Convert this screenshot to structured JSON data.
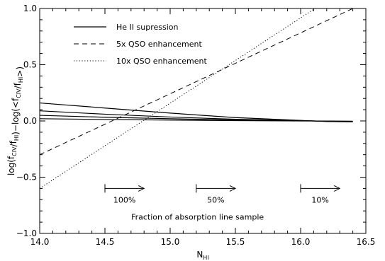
{
  "chart_data": {
    "type": "line",
    "title": "",
    "xlabel": "N_HI",
    "ylabel": "log(f_CIV/f_HI)−log(<f_CIV/f_HI>)",
    "xlim": [
      14.0,
      16.5
    ],
    "ylim": [
      -1.0,
      1.0
    ],
    "xticks": [
      "14.0",
      "14.5",
      "15.0",
      "15.5",
      "16.0",
      "16.5"
    ],
    "yticks": [
      "−1.0",
      "−0.5",
      "0.0",
      "0.5",
      "1.0"
    ],
    "legend": [
      {
        "label": "He II supression",
        "style": "solid"
      },
      {
        "label": "5x QSO enhancement",
        "style": "dashed"
      },
      {
        "label": "10x QSO enhancement",
        "style": "dotted"
      }
    ],
    "series": [
      {
        "style": "solid",
        "x": [
          14.0,
          14.5,
          15.0,
          15.5,
          16.0,
          16.2,
          16.4
        ],
        "y": [
          0.16,
          0.115,
          0.07,
          0.03,
          0.005,
          -0.005,
          -0.008
        ]
      },
      {
        "style": "solid",
        "x": [
          14.0,
          14.5,
          15.0,
          15.5,
          16.0,
          16.2,
          16.4
        ],
        "y": [
          0.09,
          0.06,
          0.035,
          0.015,
          0.003,
          -0.003,
          -0.006
        ]
      },
      {
        "style": "solid",
        "x": [
          14.0,
          14.5,
          15.0,
          15.5,
          16.0,
          16.2,
          16.4
        ],
        "y": [
          0.05,
          0.033,
          0.02,
          0.008,
          0.002,
          -0.002,
          -0.004
        ]
      },
      {
        "style": "solid",
        "x": [
          14.0,
          14.5,
          15.0,
          15.5,
          16.0,
          16.2,
          16.4
        ],
        "y": [
          0.02,
          0.013,
          0.008,
          0.003,
          0.0,
          -0.001,
          -0.002
        ]
      },
      {
        "style": "dashed",
        "x": [
          14.0,
          16.4
        ],
        "y": [
          -0.3,
          1.0
        ]
      },
      {
        "style": "dotted",
        "x": [
          14.0,
          16.4
        ],
        "y": [
          -0.6,
          1.22
        ]
      }
    ],
    "annotations": [
      {
        "label": "100%",
        "arrow_from": 14.5,
        "arrow_to": 14.8,
        "y": -0.6
      },
      {
        "label": "50%",
        "arrow_from": 15.2,
        "arrow_to": 15.5,
        "y": -0.6
      },
      {
        "label": "10%",
        "arrow_from": 16.0,
        "arrow_to": 16.3,
        "y": -0.6
      }
    ],
    "annotation_caption": "Fraction of absorption line sample",
    "grid": false
  }
}
